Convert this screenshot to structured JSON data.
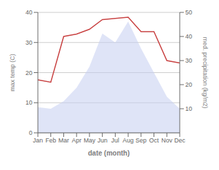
{
  "chart_data": {
    "type": "area",
    "categories": [
      "Jan",
      "Feb",
      "Mar",
      "Apr",
      "May",
      "Jun",
      "Jul",
      "Aug",
      "Sep",
      "Oct",
      "Nov",
      "Dec"
    ],
    "series": [
      {
        "type": "area",
        "color": "#c5cef0",
        "values": [
          8.5,
          8.0,
          10.5,
          15.0,
          22.0,
          33.0,
          30.0,
          37.0,
          28.0,
          20.0,
          12.0,
          8.0
        ]
      },
      {
        "type": "line",
        "color": "#c84040",
        "axis": "y2",
        "values": [
          22,
          21,
          40,
          41,
          43,
          47,
          47.5,
          48,
          42,
          42,
          30,
          29
        ]
      }
    ],
    "xlabel": "date (month)",
    "ylabel": "max temp (C)",
    "y2label": "med. precipitation (kg/m2)",
    "ylim": [
      0,
      40
    ],
    "yticks": [
      0,
      10,
      20,
      30,
      40
    ],
    "y2lim": [
      0,
      50
    ],
    "y2ticks": [
      10,
      20,
      30,
      40,
      50
    ],
    "grid": true
  }
}
